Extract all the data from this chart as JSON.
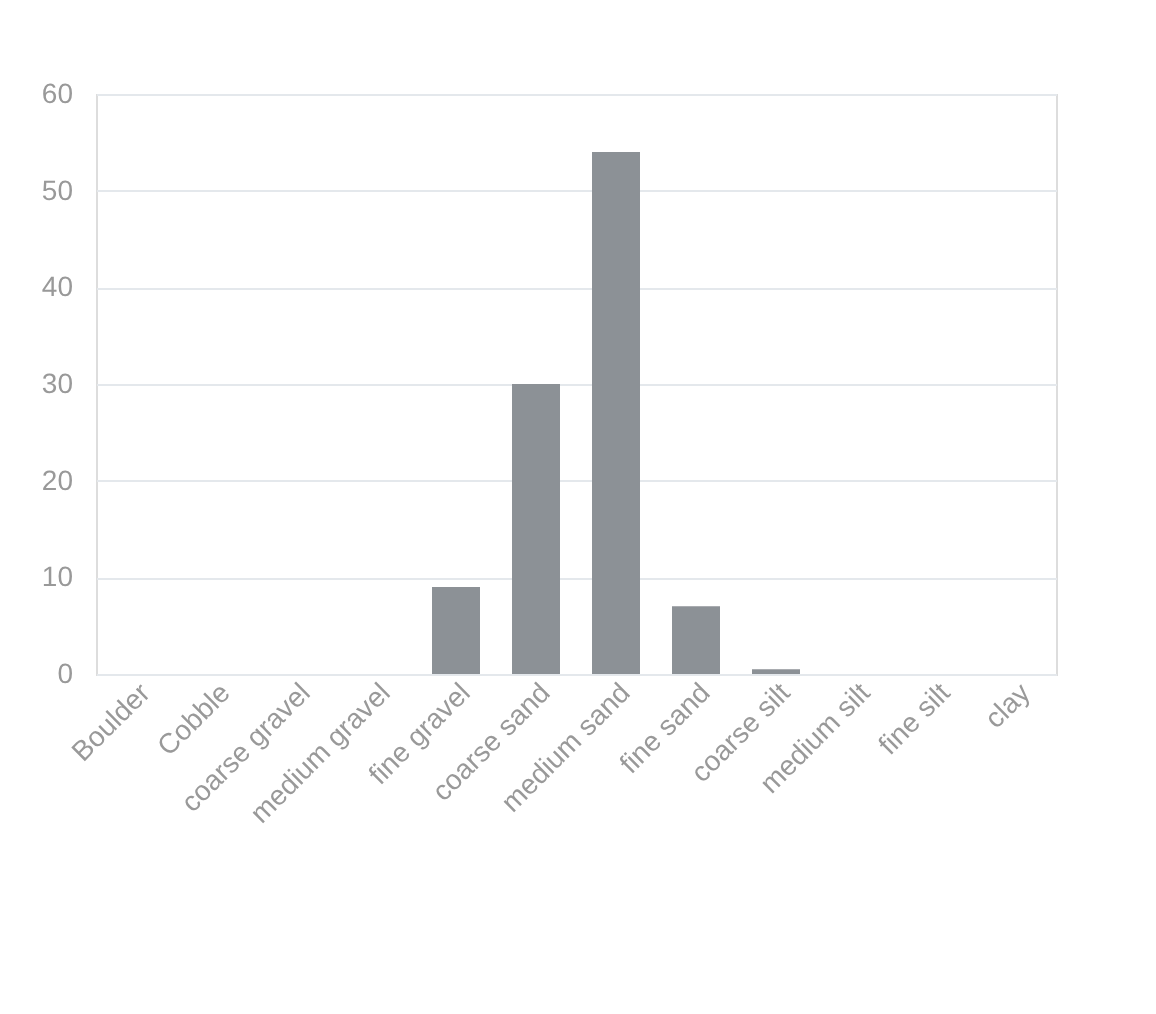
{
  "chart_data": {
    "type": "bar",
    "categories": [
      "Boulder",
      "Cobble",
      "coarse gravel",
      "medium gravel",
      "fine gravel",
      "coarse sand",
      "medium sand",
      "fine sand",
      "coarse silt",
      "medium silt",
      "fine silt",
      "clay"
    ],
    "values": [
      0,
      0,
      0,
      0,
      9,
      30,
      54,
      7,
      0.5,
      0,
      0,
      0
    ],
    "color": "#8c9196",
    "ylim": [
      0,
      60
    ],
    "yticks": [
      0,
      10,
      20,
      30,
      40,
      50,
      60
    ],
    "grid": "y"
  }
}
